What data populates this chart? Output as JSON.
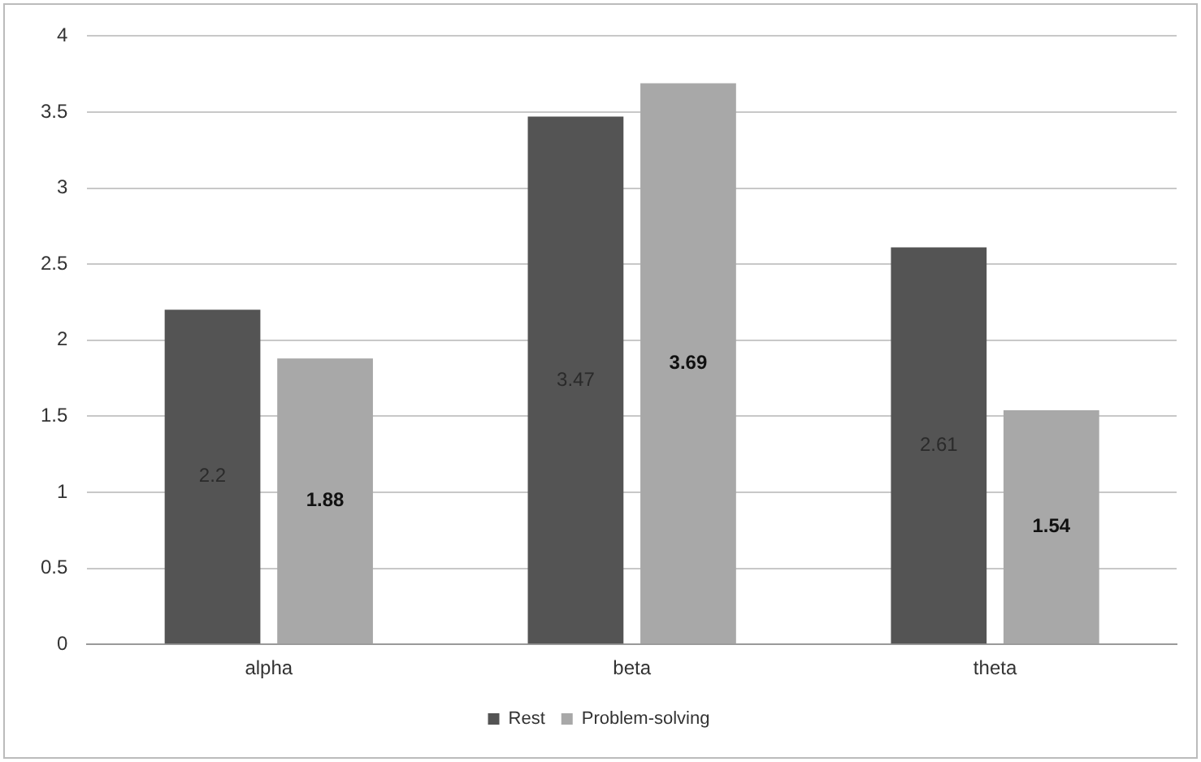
{
  "chart_data": {
    "type": "bar",
    "categories": [
      "alpha",
      "beta",
      "theta"
    ],
    "series": [
      {
        "name": "Rest",
        "color": "#545454",
        "values": [
          2.2,
          3.47,
          2.61
        ]
      },
      {
        "name": "Problem-solving",
        "color": "#a8a8a8",
        "values": [
          1.88,
          3.69,
          1.54
        ]
      }
    ],
    "ylim": [
      0,
      4
    ],
    "yticks": [
      0,
      0.5,
      1,
      1.5,
      2,
      2.5,
      3,
      3.5,
      4
    ],
    "grid": "y",
    "legend": "bottom",
    "data_labels": true
  }
}
